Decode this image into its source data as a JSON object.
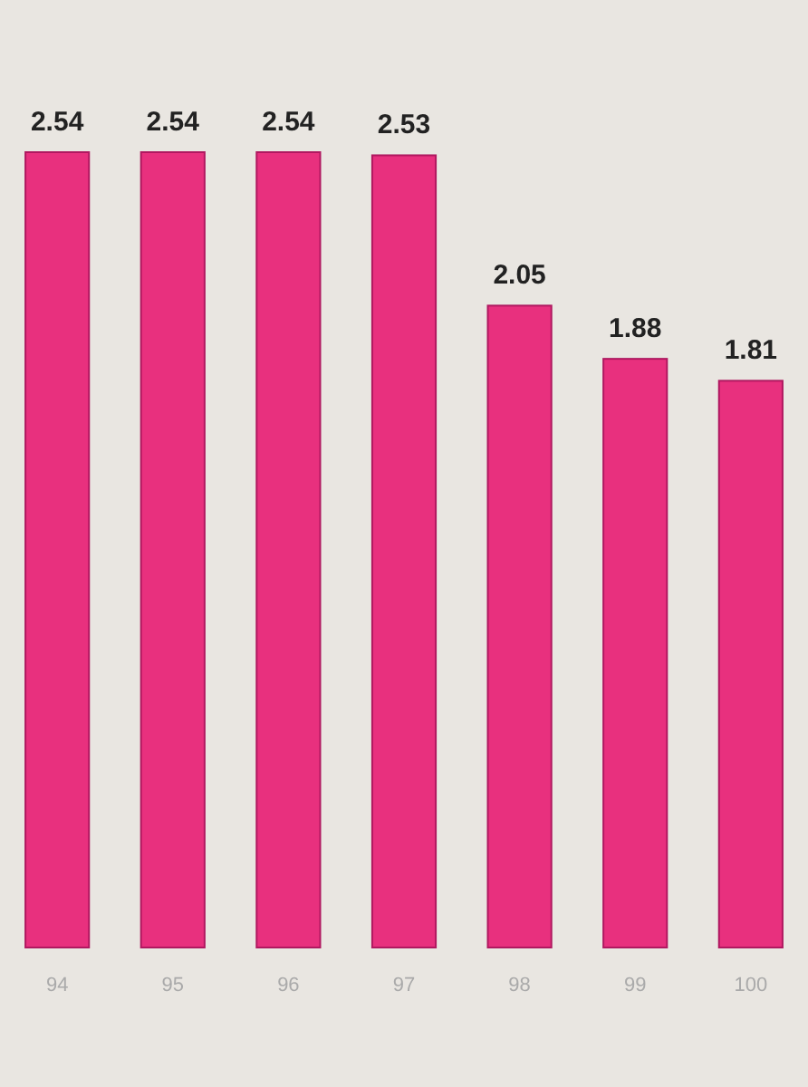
{
  "chart_data": {
    "type": "bar",
    "categories": [
      "94",
      "95",
      "96",
      "97",
      "98",
      "99",
      "100"
    ],
    "values": [
      2.54,
      2.54,
      2.54,
      2.53,
      2.05,
      1.88,
      1.81
    ],
    "color": "#e8307e",
    "data_labels": true,
    "ylim": [
      0,
      2.54
    ],
    "tick_labels": "x"
  }
}
